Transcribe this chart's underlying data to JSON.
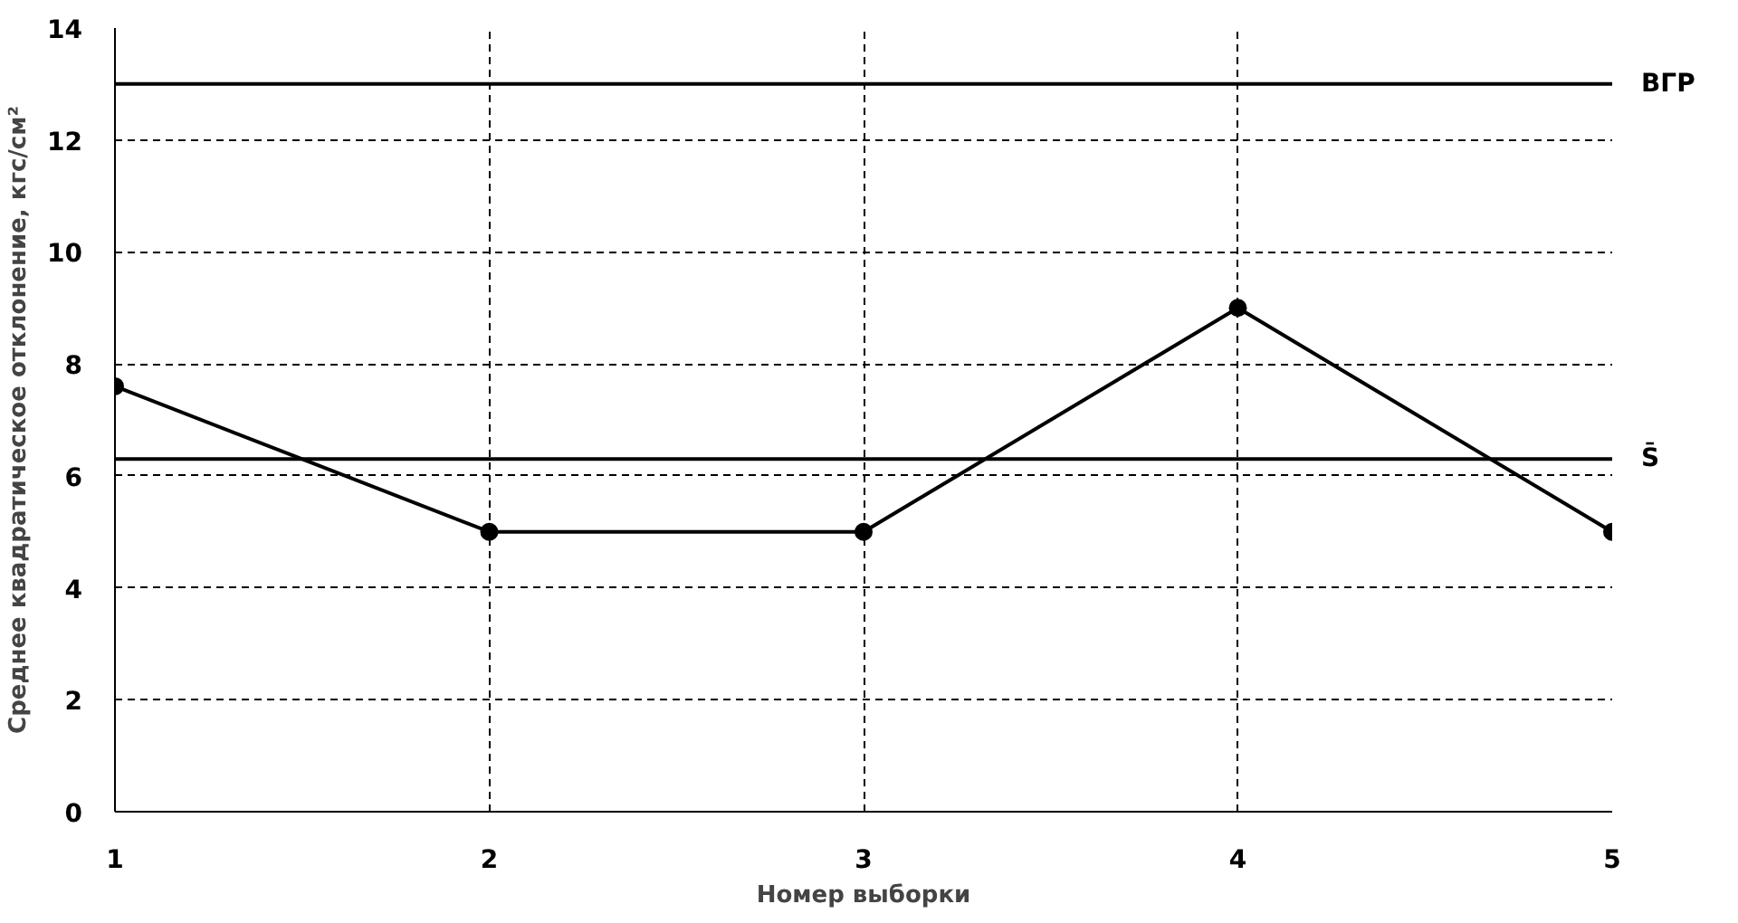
{
  "chart_data": {
    "type": "line",
    "xlabel": "Номер выборки",
    "ylabel": "Среднее квадратическое отклонение, кгс/см²",
    "x": [
      1,
      2,
      3,
      4,
      5
    ],
    "series": [
      {
        "color": "#000000",
        "values": [
          7.6,
          5,
          5,
          9,
          5
        ]
      }
    ],
    "xlim": [
      1,
      5
    ],
    "xticks": [
      1,
      2,
      3,
      4,
      5
    ],
    "ylim": [
      0,
      14
    ],
    "yticks": [
      0,
      2,
      4,
      6,
      8,
      10,
      12,
      14
    ],
    "ref_lines": [
      {
        "axis": "y",
        "value": 13,
        "label": "ВГР",
        "color": "#000000"
      },
      {
        "axis": "y",
        "value": 6.3,
        "label": "S̄",
        "color": "#000000"
      }
    ],
    "grid": true,
    "marker": "circle",
    "line_style": "solid"
  }
}
